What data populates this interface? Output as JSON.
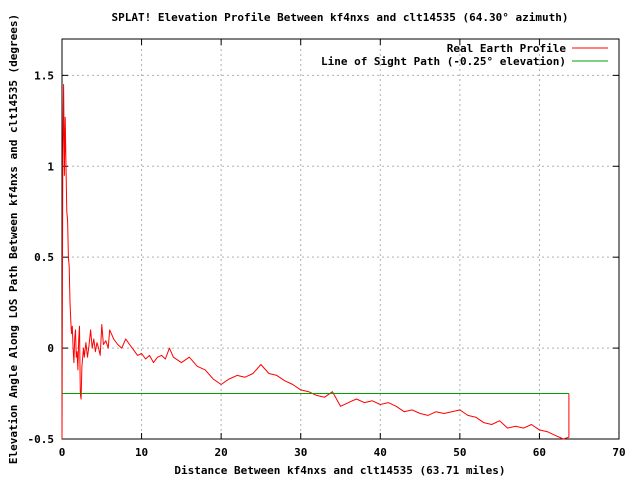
{
  "chart_data": {
    "type": "line",
    "title": "SPLAT! Elevation Profile Between kf4nxs and clt14535 (64.30° azimuth)",
    "xlabel": "Distance Between kf4nxs and clt14535 (63.71 miles)",
    "ylabel": "Elevation Angle Along LOS Path Between kf4nxs and clt14535 (degrees)",
    "xlim": [
      0,
      70
    ],
    "ylim": [
      -0.5,
      1.7
    ],
    "x_ticks": [
      0,
      10,
      20,
      30,
      40,
      50,
      60,
      70
    ],
    "x_tick_labels": [
      "0",
      "10",
      "20",
      "30",
      "40",
      "50",
      "60",
      "70"
    ],
    "y_ticks": [
      -0.5,
      0,
      0.5,
      1,
      1.5
    ],
    "y_tick_labels": [
      "-0.5",
      "0",
      "0.5",
      "1",
      "1.5"
    ],
    "grid": true,
    "legend_position": "top-right",
    "colors": {
      "earth": "#ff0000",
      "los": "#00a000"
    },
    "series": [
      {
        "name": "Real Earth Profile",
        "color": "#ff0000",
        "x": [
          0,
          0.1,
          0.2,
          0.3,
          0.4,
          0.5,
          0.6,
          0.7,
          0.8,
          0.9,
          1.0,
          1.1,
          1.2,
          1.3,
          1.4,
          1.5,
          1.6,
          1.7,
          1.8,
          1.9,
          2.0,
          2.1,
          2.2,
          2.3,
          2.4,
          2.5,
          2.6,
          2.7,
          2.8,
          3.0,
          3.2,
          3.4,
          3.6,
          3.8,
          4.0,
          4.2,
          4.4,
          4.6,
          4.8,
          5.0,
          5.2,
          5.5,
          5.8,
          6.0,
          6.5,
          7.0,
          7.5,
          8.0,
          8.5,
          9.0,
          9.5,
          10.0,
          10.5,
          11.0,
          11.5,
          12.0,
          12.5,
          13.0,
          13.5,
          14.0,
          15.0,
          16.0,
          17.0,
          18.0,
          19.0,
          20.0,
          21.0,
          22.0,
          23.0,
          24.0,
          25.0,
          26.0,
          27.0,
          28.0,
          29.0,
          30.0,
          31.0,
          32.0,
          33.0,
          34.0,
          35.0,
          36.0,
          37.0,
          38.0,
          39.0,
          40.0,
          41.0,
          42.0,
          43.0,
          44.0,
          45.0,
          46.0,
          47.0,
          48.0,
          49.0,
          50.0,
          51.0,
          52.0,
          53.0,
          54.0,
          55.0,
          56.0,
          57.0,
          58.0,
          59.0,
          60.0,
          61.0,
          62.0,
          63.0,
          63.71,
          63.71
        ],
        "y": [
          -0.5,
          1.05,
          1.45,
          0.95,
          1.27,
          1.0,
          0.75,
          0.7,
          0.5,
          0.45,
          0.25,
          0.15,
          0.08,
          0.12,
          0.0,
          -0.08,
          0.05,
          0.1,
          -0.05,
          -0.02,
          -0.12,
          0.05,
          0.12,
          -0.25,
          -0.28,
          -0.1,
          -0.05,
          0.0,
          -0.05,
          0.03,
          -0.05,
          0.02,
          0.1,
          0.0,
          0.05,
          -0.02,
          0.03,
          0.0,
          -0.04,
          0.13,
          0.02,
          0.04,
          0.0,
          0.1,
          0.05,
          0.02,
          0.0,
          0.05,
          0.02,
          -0.01,
          -0.04,
          -0.03,
          -0.06,
          -0.04,
          -0.08,
          -0.05,
          -0.04,
          -0.06,
          0.0,
          -0.05,
          -0.08,
          -0.05,
          -0.1,
          -0.12,
          -0.17,
          -0.2,
          -0.17,
          -0.15,
          -0.16,
          -0.14,
          -0.09,
          -0.14,
          -0.15,
          -0.18,
          -0.2,
          -0.23,
          -0.24,
          -0.26,
          -0.27,
          -0.24,
          -0.32,
          -0.3,
          -0.28,
          -0.3,
          -0.29,
          -0.31,
          -0.3,
          -0.32,
          -0.35,
          -0.34,
          -0.36,
          -0.37,
          -0.35,
          -0.36,
          -0.35,
          -0.34,
          -0.37,
          -0.38,
          -0.41,
          -0.42,
          -0.4,
          -0.44,
          -0.43,
          -0.44,
          -0.42,
          -0.45,
          -0.46,
          -0.48,
          -0.5,
          -0.49,
          -0.25
        ]
      },
      {
        "name": "Line of Sight Path (-0.25° elevation)",
        "color": "#00a000",
        "x": [
          0,
          63.71
        ],
        "y": [
          -0.25,
          -0.25
        ]
      }
    ]
  }
}
